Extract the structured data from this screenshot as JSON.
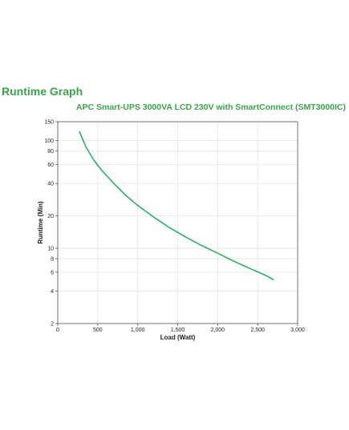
{
  "header": {
    "title": "Runtime Graph",
    "subtitle": "APC Smart-UPS 3000VA LCD 230V with SmartConnect (SMT3000IC)"
  },
  "colors": {
    "accent": "#3da34a",
    "curve": "#2dae6a",
    "grid": "#e3e3e3"
  },
  "chart_data": {
    "type": "line",
    "title": "",
    "xlabel": "Load (Watt)",
    "ylabel": "Runtime (Min)",
    "xlim": [
      0,
      3000
    ],
    "ylim": [
      2,
      150
    ],
    "yscale": "log",
    "grid": true,
    "x_ticks": [
      0,
      500,
      1000,
      1500,
      2000,
      2500,
      3000
    ],
    "x_tick_labels": [
      "0",
      "500",
      "1,000",
      "1,500",
      "2,000",
      "2,500",
      "3,000"
    ],
    "y_ticks": [
      2,
      4,
      6,
      8,
      10,
      20,
      40,
      60,
      80,
      100,
      150
    ],
    "y_tick_labels": [
      "2",
      "4",
      "6",
      "8",
      "10",
      "20",
      "40",
      "60",
      "80",
      "100",
      "150"
    ],
    "series": [
      {
        "x": [
          270,
          350,
          450,
          550,
          700,
          850,
          1000,
          1200,
          1400,
          1600,
          1800,
          2000,
          2200,
          2400,
          2600,
          2700
        ],
        "y": [
          122,
          88,
          66,
          53,
          40,
          31,
          25,
          19.5,
          15.5,
          12.7,
          10.6,
          9.0,
          7.6,
          6.5,
          5.6,
          5.1
        ]
      }
    ]
  }
}
